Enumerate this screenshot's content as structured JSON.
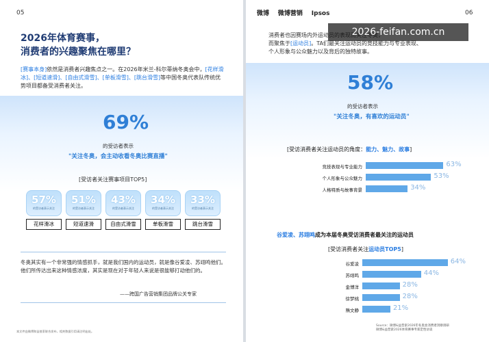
{
  "left_page": {
    "page_number": "05",
    "title_line1": "2026年体育赛事，",
    "title_line2": "消费者的兴趣聚焦在哪里？",
    "intro_parts": [
      "[赛事本身]",
      "依然是消费者兴趣焦点之一。在2026年米兰-科尔蒂纳冬奥会中，",
      "[花样滑冰]、[短道速滑]、[自由式滑雪]、[单板滑雪]、[跳台滑雪]",
      "等中国冬奥代表队传统优势项目都备受消费者关注。"
    ],
    "main_stat": {
      "value": "69%",
      "sub": "的受访者表示",
      "quote": "\"关注冬奥，会主动收看冬奥比赛直播\""
    },
    "top5_title": "[受访者关注赛事项目TOP5]",
    "cards": [
      {
        "value": "57%",
        "caption": "的受访者表示关注",
        "label": "花样滑冰"
      },
      {
        "value": "51%",
        "caption": "的受访者表示关注",
        "label": "短道速滑"
      },
      {
        "value": "43%",
        "caption": "的受访者表示关注",
        "label": "自由式滑雪"
      },
      {
        "value": "34%",
        "caption": "的受访者表示关注",
        "label": "单板滑雪"
      },
      {
        "value": "33%",
        "caption": "的受访者表示关注",
        "label": "跳台滑雪"
      }
    ],
    "quote_text": "冬奥其实有一个非常强的情感抓手，就是我们国内的运动员，就是像谷爱凌、苏翊鸣他们。他们所传达出来这种情感浓度，其实是现在对于年轻人来说是很能够打动他们的。",
    "quote_attribution": "——跨国广告营销集团品牌公关专家",
    "footer": "本文件由微博和益普索联合发布，相关数据引用请注明出处。"
  },
  "right_page": {
    "page_number": "06",
    "brands": [
      "微博",
      "微博营销",
      "Ipsos"
    ],
    "intro_line1": "消费者也因赛场内外运动员的表现而关注冬奥，",
    "intro_line2_prefix": "而聚焦于",
    "intro_line2_highlight": "[运动员]",
    "intro_line2_suffix": "。TA们最关注运动员的竞技能力与专业表现、",
    "intro_line3": "个人形象与公众魅力以及背后的独特故事。",
    "watermark": "2026-feifan.com.cn",
    "main_stat": {
      "value": "58%",
      "sub": "的受访者表示",
      "quote": "\"关注冬奥，有喜欢的运动员\""
    },
    "angle_title_prefix": "[受访消费者关注运动员的角度：",
    "angle_title_accent": "能力、魅力、故事",
    "angle_title_suffix": "]",
    "angles": [
      {
        "label": "竞技表现与专业能力",
        "value": "63%"
      },
      {
        "label": "个人形象与公众魅力",
        "value": "53%"
      },
      {
        "label": "人格特质与故事背景",
        "value": "34%"
      }
    ],
    "athlete_headline_accent": "谷爱凌、苏翊鸣",
    "athlete_headline_rest": "成为本届冬奥受访消费者最关注的运动员",
    "athlete_title_prefix": "[受访消费者关注",
    "athlete_title_accent": "运动员TOP5",
    "athlete_title_suffix": "]",
    "athletes": [
      {
        "name": "谷爱凌",
        "value": "64%"
      },
      {
        "name": "苏翊鸣",
        "value": "44%"
      },
      {
        "name": "金博洋",
        "value": "28%"
      },
      {
        "name": "徐梦桃",
        "value": "28%"
      },
      {
        "name": "隋文静",
        "value": "21%"
      }
    ],
    "source_line1": "Source：微博&益普索2026年冬奥会消费者洞察调研",
    "source_line2": "微博&益普索2026体育赛事专家定性访谈"
  },
  "chart_data": [
    {
      "type": "bar",
      "categories": [
        "竞技表现与专业能力",
        "个人形象与公众魅力",
        "人格特质与故事背景"
      ],
      "values": [
        63,
        53,
        34
      ],
      "title": "[受访消费者关注运动员的角度：能力、魅力、故事]",
      "xlabel": "",
      "ylabel": "",
      "ylim": [
        0,
        100
      ]
    },
    {
      "type": "bar",
      "categories": [
        "谷爱凌",
        "苏翊鸣",
        "金博洋",
        "徐梦桃",
        "隋文静"
      ],
      "values": [
        64,
        44,
        28,
        28,
        21
      ],
      "title": "[受访消费者关注运动员TOP5]",
      "xlabel": "",
      "ylabel": "",
      "ylim": [
        0,
        100
      ]
    }
  ]
}
